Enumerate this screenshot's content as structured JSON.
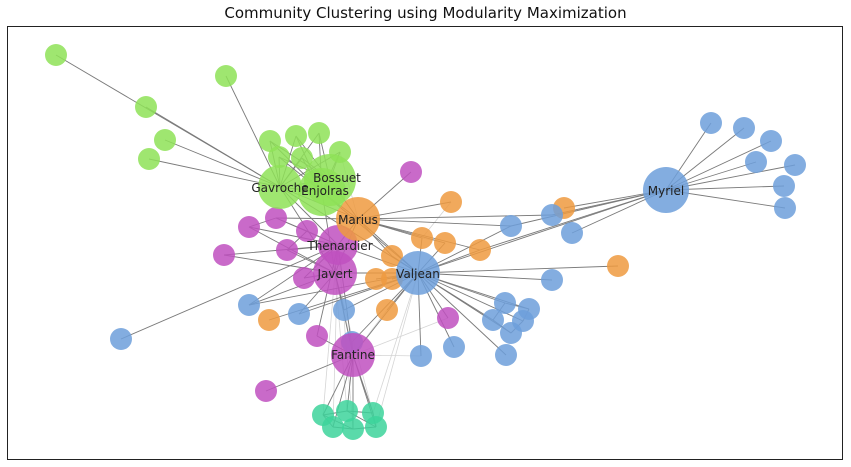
{
  "title": "Community Clustering using Modularity Maximization",
  "colors": {
    "green": "#8ee257",
    "purple": "#c050c0",
    "orange": "#ee9a40",
    "blue": "#6d9fda",
    "teal": "#3dd49b",
    "edge": "#7a7a7a",
    "edge_light": "#d5d5d5"
  },
  "labels": {
    "gavroche": "Gavroche",
    "bossuet": "Bossuet",
    "enjolras": "Enjolras",
    "marius": "Marius",
    "thenardier": "Thenardier",
    "javert": "Javert",
    "valjean": "Valjean",
    "myriel": "Myriel",
    "fantine": "Fantine"
  }
}
